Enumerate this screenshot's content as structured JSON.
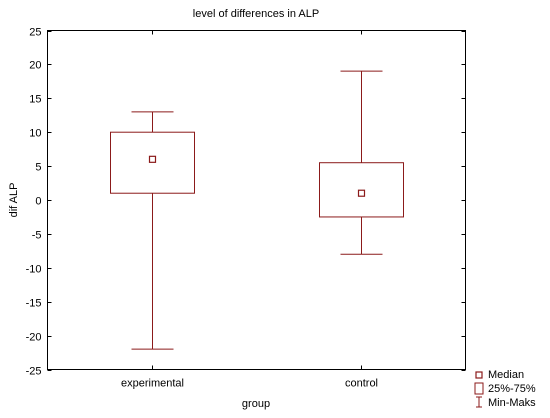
{
  "chart_data": {
    "type": "box",
    "title": "level of differences in ALP",
    "xlabel": "group",
    "ylabel": "dif ALP",
    "ylim": [
      -25,
      25
    ],
    "yticks": [
      -25,
      -20,
      -15,
      -10,
      -5,
      0,
      5,
      10,
      15,
      20,
      25
    ],
    "categories": [
      "experimental",
      "control"
    ],
    "boxes": [
      {
        "category": "experimental",
        "median": 6,
        "q1": 1,
        "q3": 10,
        "min": -22,
        "max": 13
      },
      {
        "category": "control",
        "median": 1,
        "q1": -2.5,
        "q3": 5.5,
        "min": -8,
        "max": 19
      }
    ],
    "legend": {
      "position": "bottom-right",
      "items": [
        "Median",
        "25%-75%",
        "Min-Maks"
      ]
    },
    "grid": false,
    "color": "#8b1a1a"
  }
}
